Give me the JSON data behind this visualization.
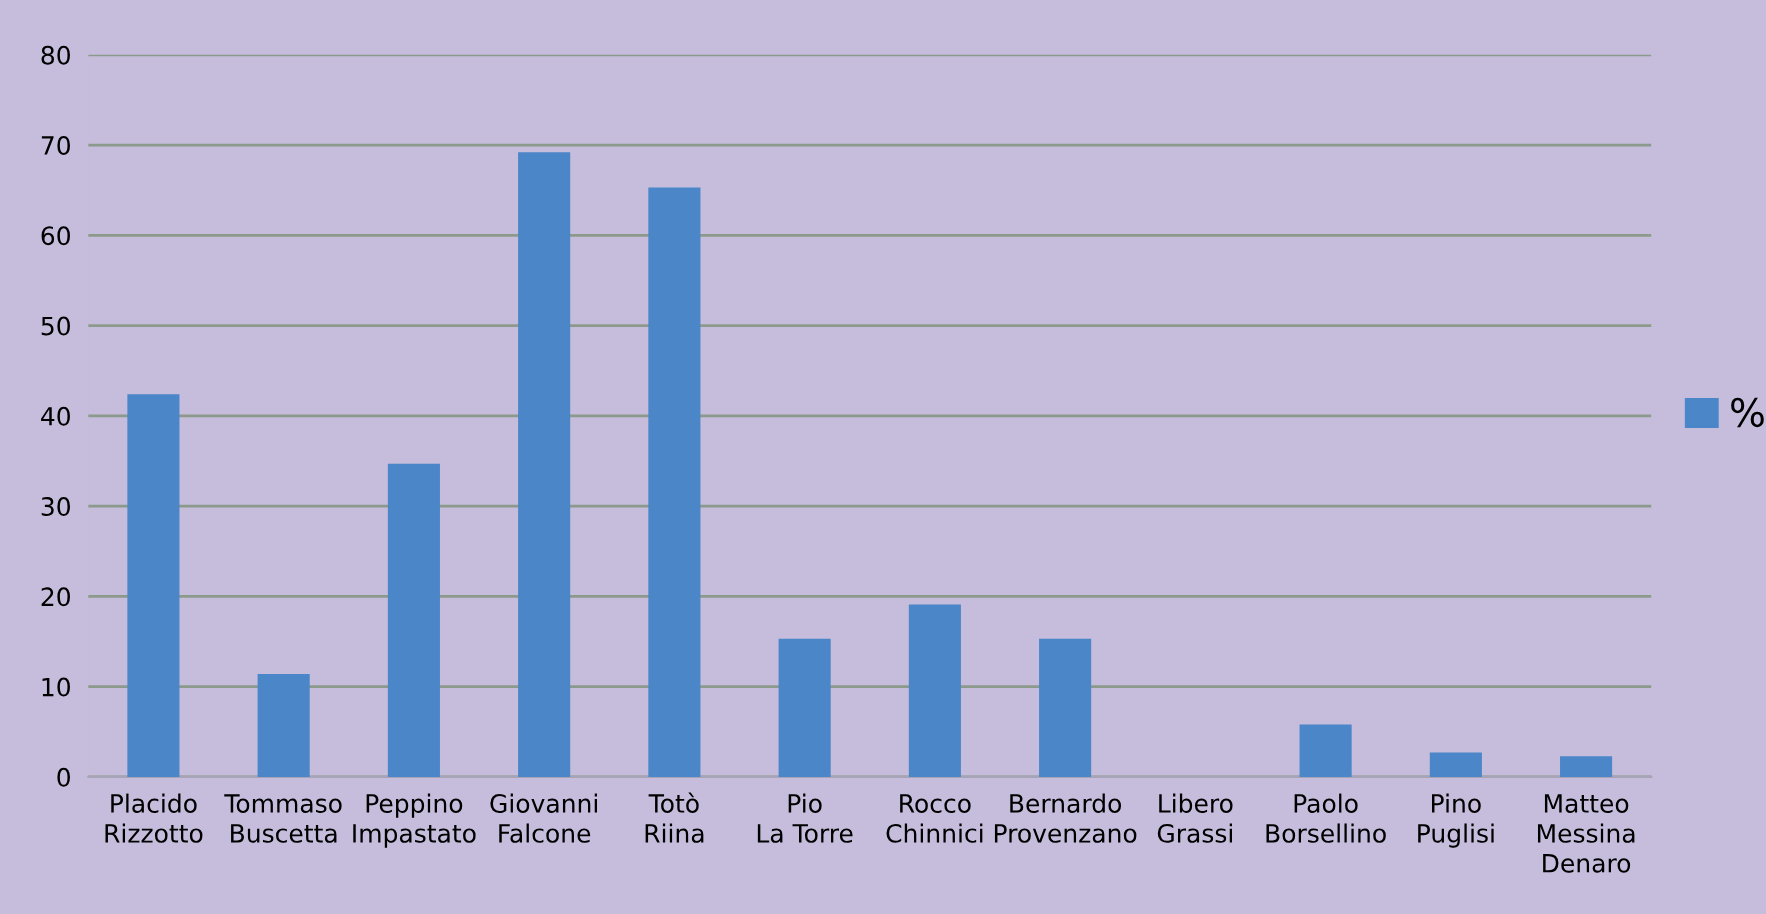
{
  "chart_data": {
    "type": "bar",
    "categories": [
      "Placido\nRizzotto",
      "Tommaso\nBuscetta",
      "Peppino\nImpastato",
      "Giovanni\nFalcone",
      "Totò\nRiina",
      "Pio\nLa Torre",
      "Rocco\nChinnici",
      "Bernardo\nProvenzano",
      "Libero\nGrassi",
      "Paolo\nBorsellino",
      "Pino\nPuglisi",
      "Matteo\nMessina\nDenaro"
    ],
    "series": [
      {
        "name": "%",
        "color": "#4a86c8",
        "values": [
          42.4,
          11.4,
          34.7,
          69.2,
          65.3,
          15.3,
          19.1,
          15.3,
          0,
          5.8,
          2.7,
          2.3
        ]
      }
    ],
    "ylim": [
      0,
      80
    ],
    "yticks": [
      0,
      10,
      20,
      30,
      40,
      50,
      60,
      70,
      80
    ],
    "grid": "y",
    "legend": "right"
  }
}
